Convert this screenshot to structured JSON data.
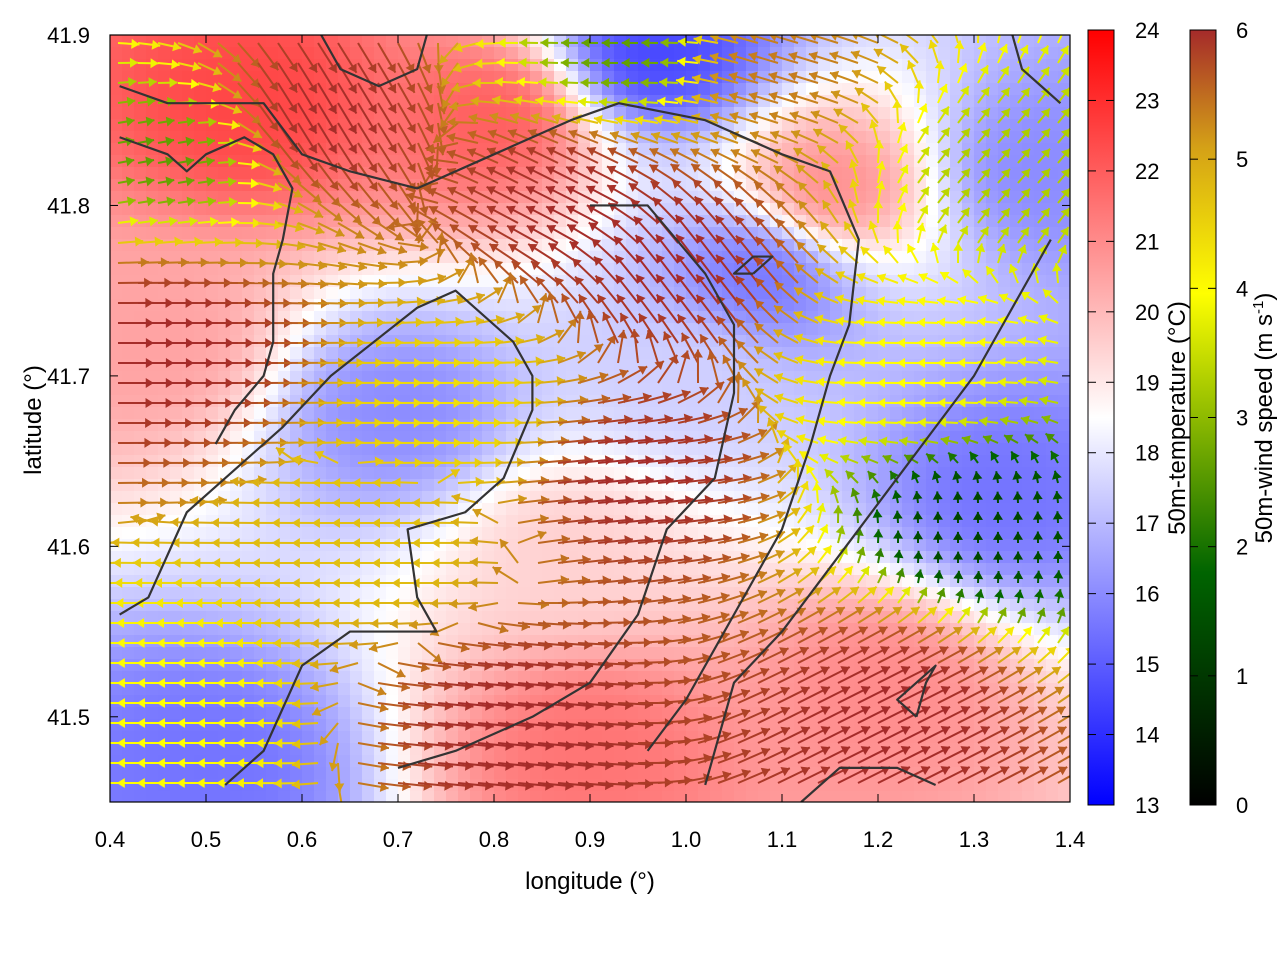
{
  "chart_data": {
    "type": "heatmap",
    "subtype": "wind-vector-field-over-temperature-map",
    "xlabel": "longitude (°)",
    "ylabel": "latitude (°)",
    "xlim": [
      0.4,
      1.4
    ],
    "ylim": [
      41.45,
      41.9
    ],
    "x_ticks": [
      "0.4",
      "0.5",
      "0.6",
      "0.7",
      "0.8",
      "0.9",
      "1.0",
      "1.1",
      "1.2",
      "1.3",
      "1.4"
    ],
    "y_ticks": [
      "41.5",
      "41.6",
      "41.7",
      "41.8",
      "41.9"
    ],
    "temperature_colorbar": {
      "label": "50m-temperature (°C)",
      "range": [
        13,
        24
      ],
      "ticks": [
        "13",
        "14",
        "15",
        "16",
        "17",
        "18",
        "19",
        "20",
        "21",
        "22",
        "23",
        "24"
      ],
      "colors": [
        "#0000ff",
        "#ffffff",
        "#ff0000"
      ]
    },
    "wind_colorbar": {
      "label_main": "50m-wind speed (m s",
      "label_sup": "-1",
      "label_end": ")",
      "range": [
        0,
        6
      ],
      "ticks": [
        "0",
        "1",
        "2",
        "3",
        "4",
        "5",
        "6"
      ],
      "colors": [
        "#000000",
        "#006400",
        "#ffff00",
        "#d4a017",
        "#a52a2a"
      ]
    },
    "temperature_regions": [
      {
        "lon": 0.55,
        "lat": 41.86,
        "t": 22.5
      },
      {
        "lon": 0.8,
        "lat": 41.85,
        "t": 22.0
      },
      {
        "lon": 1.15,
        "lat": 41.81,
        "t": 21.0
      },
      {
        "lon": 0.45,
        "lat": 41.72,
        "t": 20.5
      },
      {
        "lon": 0.88,
        "lat": 41.6,
        "t": 19.5
      },
      {
        "lon": 1.2,
        "lat": 41.52,
        "t": 21.0
      },
      {
        "lon": 0.9,
        "lat": 41.48,
        "t": 21.5
      },
      {
        "lon": 0.7,
        "lat": 41.68,
        "t": 16.0
      },
      {
        "lon": 1.08,
        "lat": 41.76,
        "t": 15.5
      },
      {
        "lon": 1.33,
        "lat": 41.63,
        "t": 15.5
      },
      {
        "lon": 1.37,
        "lat": 41.82,
        "t": 16.0
      },
      {
        "lon": 0.97,
        "lat": 41.89,
        "t": 14.5
      },
      {
        "lon": 0.5,
        "lat": 41.47,
        "t": 15.5
      },
      {
        "lon": 1.0,
        "lat": 41.7,
        "t": 17.5
      }
    ],
    "contours": [
      [
        [
          0.41,
          41.56
        ],
        [
          0.44,
          41.57
        ],
        [
          0.48,
          41.62
        ],
        [
          0.58,
          41.67
        ],
        [
          0.63,
          41.7
        ],
        [
          0.72,
          41.74
        ],
        [
          0.76,
          41.75
        ],
        [
          0.82,
          41.72
        ],
        [
          0.84,
          41.7
        ],
        [
          0.84,
          41.68
        ],
        [
          0.81,
          41.64
        ],
        [
          0.77,
          41.62
        ],
        [
          0.71,
          41.61
        ],
        [
          0.72,
          41.57
        ],
        [
          0.74,
          41.55
        ],
        [
          0.65,
          41.55
        ],
        [
          0.6,
          41.53
        ],
        [
          0.56,
          41.48
        ],
        [
          0.52,
          41.46
        ]
      ],
      [
        [
          0.51,
          41.66
        ],
        [
          0.53,
          41.68
        ],
        [
          0.56,
          41.7
        ],
        [
          0.57,
          41.72
        ],
        [
          0.57,
          41.76
        ],
        [
          0.58,
          41.78
        ],
        [
          0.59,
          41.81
        ],
        [
          0.57,
          41.83
        ],
        [
          0.54,
          41.84
        ],
        [
          0.5,
          41.83
        ],
        [
          0.48,
          41.82
        ],
        [
          0.46,
          41.83
        ],
        [
          0.41,
          41.84
        ]
      ],
      [
        [
          0.41,
          41.87
        ],
        [
          0.46,
          41.86
        ],
        [
          0.52,
          41.86
        ],
        [
          0.56,
          41.86
        ],
        [
          0.6,
          41.83
        ],
        [
          0.65,
          41.82
        ],
        [
          0.72,
          41.81
        ],
        [
          0.8,
          41.83
        ],
        [
          0.88,
          41.85
        ],
        [
          0.93,
          41.86
        ],
        [
          1.02,
          41.85
        ],
        [
          1.1,
          41.83
        ],
        [
          1.15,
          41.82
        ],
        [
          1.18,
          41.78
        ],
        [
          1.17,
          41.73
        ],
        [
          1.15,
          41.7
        ],
        [
          1.13,
          41.66
        ],
        [
          1.1,
          41.61
        ],
        [
          1.05,
          41.56
        ],
        [
          1.0,
          41.51
        ],
        [
          0.96,
          41.48
        ]
      ],
      [
        [
          0.9,
          41.8
        ],
        [
          0.96,
          41.8
        ],
        [
          1.02,
          41.76
        ],
        [
          1.05,
          41.73
        ],
        [
          1.05,
          41.69
        ],
        [
          1.03,
          41.64
        ],
        [
          0.98,
          41.61
        ],
        [
          0.95,
          41.56
        ],
        [
          0.9,
          41.52
        ],
        [
          0.84,
          41.5
        ],
        [
          0.76,
          41.48
        ],
        [
          0.7,
          41.47
        ]
      ],
      [
        [
          1.02,
          41.46
        ],
        [
          1.05,
          41.52
        ],
        [
          1.1,
          41.55
        ],
        [
          1.14,
          41.58
        ],
        [
          1.18,
          41.61
        ],
        [
          1.22,
          41.64
        ],
        [
          1.26,
          41.67
        ],
        [
          1.3,
          41.7
        ],
        [
          1.33,
          41.73
        ],
        [
          1.36,
          41.76
        ],
        [
          1.38,
          41.78
        ]
      ],
      [
        [
          1.24,
          41.5
        ],
        [
          1.25,
          41.52
        ],
        [
          1.26,
          41.53
        ],
        [
          1.24,
          41.52
        ],
        [
          1.22,
          41.51
        ],
        [
          1.24,
          41.5
        ]
      ],
      [
        [
          1.07,
          41.76
        ],
        [
          1.09,
          41.77
        ],
        [
          1.07,
          41.77
        ],
        [
          1.05,
          41.76
        ],
        [
          1.07,
          41.76
        ]
      ],
      [
        [
          1.12,
          41.45
        ],
        [
          1.16,
          41.47
        ],
        [
          1.22,
          41.47
        ],
        [
          1.26,
          41.46
        ]
      ],
      [
        [
          0.62,
          41.9
        ],
        [
          0.64,
          41.88
        ],
        [
          0.68,
          41.87
        ],
        [
          0.72,
          41.88
        ],
        [
          0.73,
          41.9
        ]
      ],
      [
        [
          1.34,
          41.9
        ],
        [
          1.35,
          41.88
        ],
        [
          1.37,
          41.87
        ],
        [
          1.39,
          41.86
        ]
      ]
    ],
    "wind_regimes": [
      {
        "lon": 0.6,
        "lat": 41.86,
        "u": 0.5,
        "v": -0.85,
        "speed": 6.0
      },
      {
        "lon": 0.9,
        "lat": 41.8,
        "u": -0.8,
        "v": 0.4,
        "speed": 6.0
      },
      {
        "lon": 0.45,
        "lat": 41.72,
        "u": 1.0,
        "v": 0.0,
        "speed": 6.0
      },
      {
        "lon": 0.46,
        "lat": 41.83,
        "u": 1.0,
        "v": 0.2,
        "speed": 2.0
      },
      {
        "lon": 0.75,
        "lat": 41.68,
        "u": 1.0,
        "v": 0.0,
        "speed": 3.5
      },
      {
        "lon": 0.7,
        "lat": 41.6,
        "u": -1.0,
        "v": 0.0,
        "speed": 4.0
      },
      {
        "lon": 0.92,
        "lat": 41.64,
        "u": 1.0,
        "v": 0.1,
        "speed": 6.0
      },
      {
        "lon": 1.0,
        "lat": 41.76,
        "u": -0.6,
        "v": 0.8,
        "speed": 6.0
      },
      {
        "lon": 1.25,
        "lat": 41.7,
        "u": -1.0,
        "v": 0.0,
        "speed": 3.0
      },
      {
        "lon": 1.3,
        "lat": 41.61,
        "u": 0.0,
        "v": 0.4,
        "speed": 1.0
      },
      {
        "lon": 1.2,
        "lat": 41.5,
        "u": 1.0,
        "v": 0.5,
        "speed": 6.0
      },
      {
        "lon": 0.8,
        "lat": 41.5,
        "u": 1.0,
        "v": -0.1,
        "speed": 6.0
      },
      {
        "lon": 0.47,
        "lat": 41.5,
        "u": -1.0,
        "v": 0.0,
        "speed": 3.0
      },
      {
        "lon": 1.32,
        "lat": 41.82,
        "u": 0.6,
        "v": 0.7,
        "speed": 2.5
      },
      {
        "lon": 1.1,
        "lat": 41.88,
        "u": -1.0,
        "v": 0.3,
        "speed": 5.0
      },
      {
        "lon": 0.95,
        "lat": 41.89,
        "u": -1.0,
        "v": 0.0,
        "speed": 2.0
      }
    ]
  }
}
